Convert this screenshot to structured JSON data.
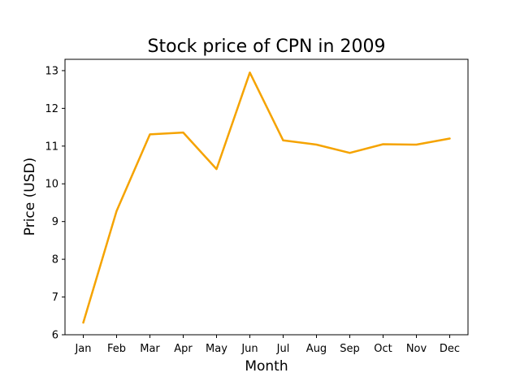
{
  "chart_data": {
    "type": "line",
    "title": "Stock price of CPN in 2009",
    "xlabel": "Month",
    "ylabel": "Price (USD)",
    "categories": [
      "Jan",
      "Feb",
      "Mar",
      "Apr",
      "May",
      "Jun",
      "Jul",
      "Aug",
      "Sep",
      "Oct",
      "Nov",
      "Dec"
    ],
    "series": [
      {
        "values": [
          6.32,
          9.28,
          11.31,
          11.36,
          10.39,
          12.95,
          11.15,
          11.04,
          10.82,
          11.05,
          11.04,
          11.2
        ],
        "color": "#f5a300"
      }
    ],
    "ylim": [
      6,
      13.3
    ],
    "yticks": [
      6,
      7,
      8,
      9,
      10,
      11,
      12,
      13
    ],
    "grid": false,
    "legend": "none"
  }
}
